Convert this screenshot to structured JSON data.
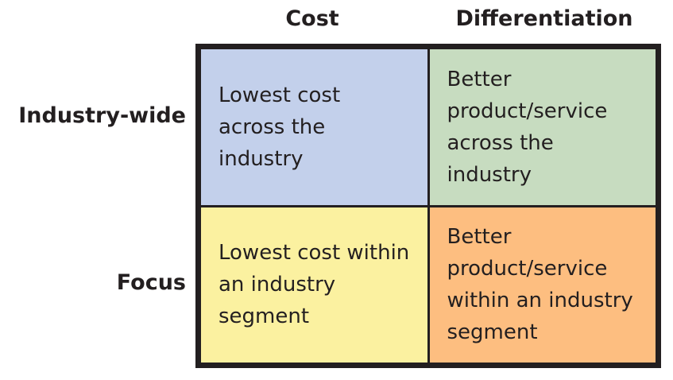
{
  "columns": {
    "cost": "Cost",
    "differentiation": "Differentiation"
  },
  "rows": {
    "industry_wide": "Industry-wide",
    "focus": "Focus"
  },
  "cells": {
    "cost_industry_wide": "Lowest cost across the industry",
    "differentiation_industry_wide": "Better product/service across the industry",
    "cost_focus": "Lowest cost within an industry segment",
    "differentiation_focus": "Better product/service within an industry segment"
  },
  "colors": {
    "cost_industry_wide": "#c3d0eb",
    "differentiation_industry_wide": "#c7dcc0",
    "cost_focus": "#fbf1a0",
    "differentiation_focus": "#fdbe80",
    "border": "#231f20"
  }
}
